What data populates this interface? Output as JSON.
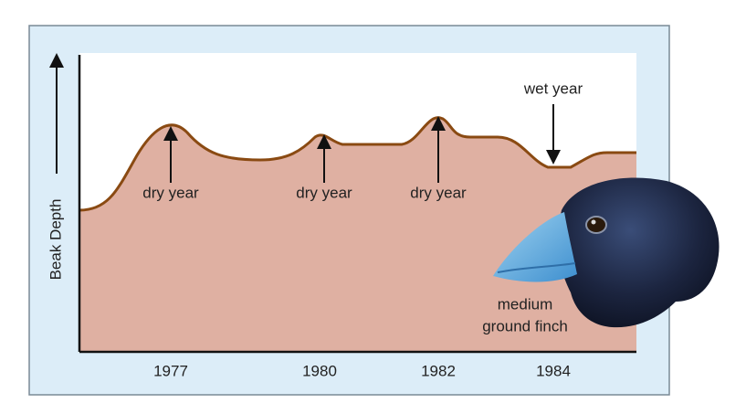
{
  "axis": {
    "y_label": "Beak Depth",
    "x_labels": [
      "1977",
      "1980",
      "1982",
      "1984"
    ]
  },
  "annotations": [
    "dry year",
    "dry year",
    "dry year",
    "wet year"
  ],
  "caption": [
    "medium",
    "ground finch"
  ]
}
